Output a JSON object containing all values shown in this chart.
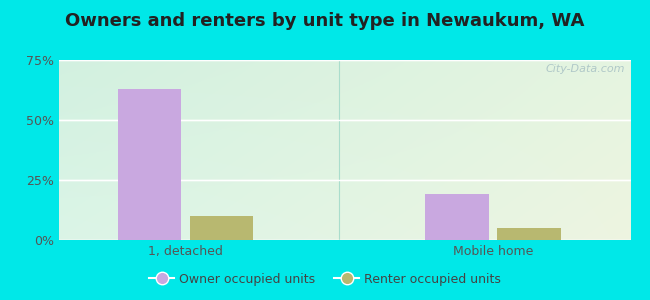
{
  "title": "Owners and renters by unit type in Newaukum, WA",
  "categories": [
    "1, detached",
    "Mobile home"
  ],
  "owner_values": [
    63,
    19
  ],
  "renter_values": [
    10,
    5
  ],
  "owner_color": "#c9a8e0",
  "renter_color": "#b8b870",
  "bar_width": 0.3,
  "ylim": [
    0,
    75
  ],
  "yticks": [
    0,
    25,
    50,
    75
  ],
  "ytick_labels": [
    "0%",
    "25%",
    "50%",
    "75%"
  ],
  "legend_owner": "Owner occupied units",
  "legend_renter": "Renter occupied units",
  "outer_bg": "#00e8e8",
  "watermark": "City-Data.com",
  "title_fontsize": 13,
  "axis_label_fontsize": 9,
  "legend_fontsize": 9
}
